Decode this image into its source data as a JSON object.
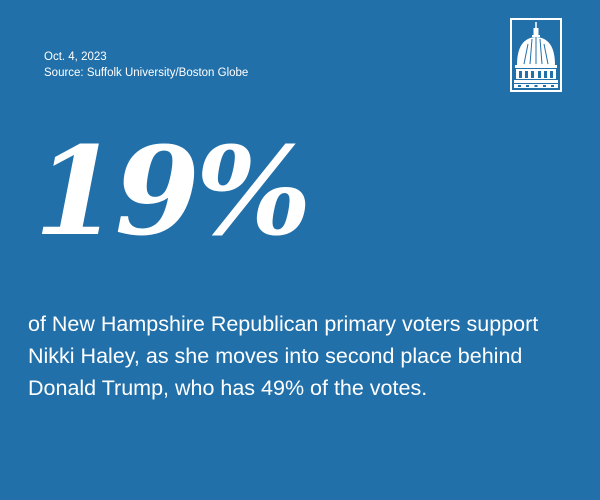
{
  "header": {
    "date": "Oct. 4, 2023",
    "source": "Source: Suffolk University/Boston Globe"
  },
  "logo": {
    "icon": "capitol-dome-icon"
  },
  "stat": {
    "value": "19%",
    "description": "of New Hampshire Republican primary voters support Nikki Haley, as she moves into second place behind Donald Trump, who has 49% of the votes."
  },
  "colors": {
    "background": "#2170aa",
    "text": "#ffffff"
  }
}
